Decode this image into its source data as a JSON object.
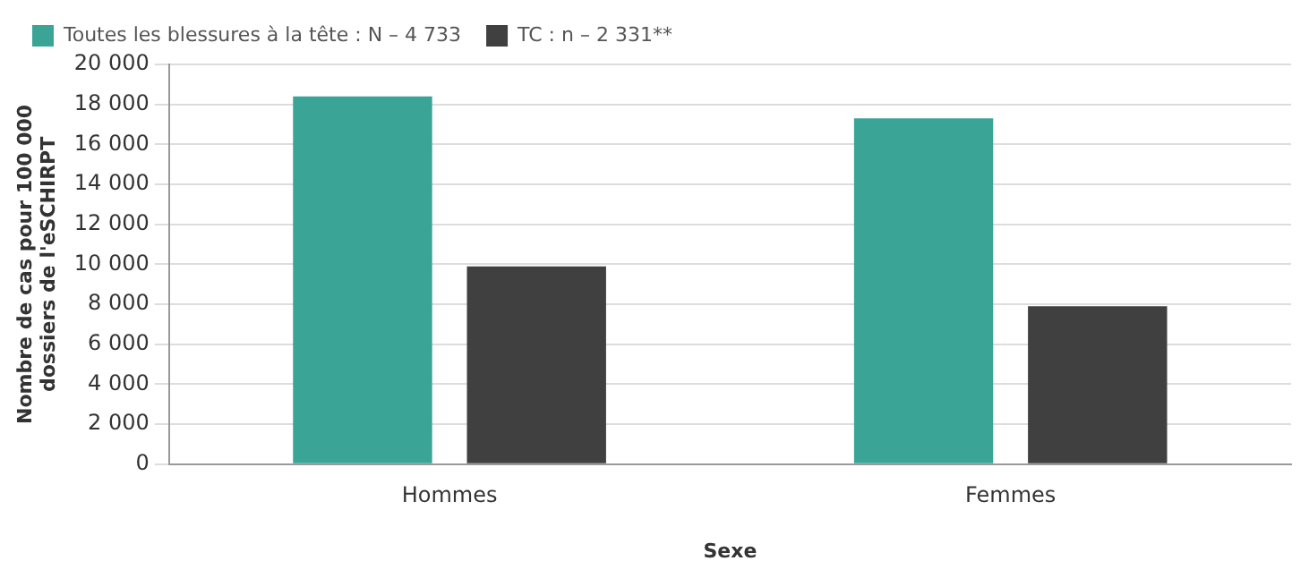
{
  "chart_data": {
    "type": "bar",
    "xlabel": "Sexe",
    "ylabel": "Nombre de cas pour 100 000\ndossiers de l'eSCHIRPT",
    "categories": [
      "Hommes",
      "Femmes"
    ],
    "series": [
      {
        "name": "Toutes les blessures à la tête : N – 4 733",
        "color": "#3aa597",
        "values": [
          18400,
          17300
        ]
      },
      {
        "name": "TC : n – 2 331**",
        "color": "#404040",
        "values": [
          9900,
          7900
        ]
      }
    ],
    "ylim": [
      0,
      20000
    ],
    "yticks": [
      0,
      {
        "value": 2000,
        "label": "2 000"
      },
      {
        "value": 4000,
        "label": "4 000"
      },
      {
        "value": 6000,
        "label": "6 000"
      },
      {
        "value": 8000,
        "label": "8 000"
      },
      {
        "value": 10000,
        "label": "10 000"
      },
      {
        "value": 12000,
        "label": "12 000"
      },
      {
        "value": 14000,
        "label": "14 000"
      },
      {
        "value": 16000,
        "label": "16 000"
      },
      {
        "value": 18000,
        "label": "18 000"
      },
      {
        "value": 20000,
        "label": "20 000"
      }
    ],
    "grid": "y",
    "legend": "top left"
  }
}
